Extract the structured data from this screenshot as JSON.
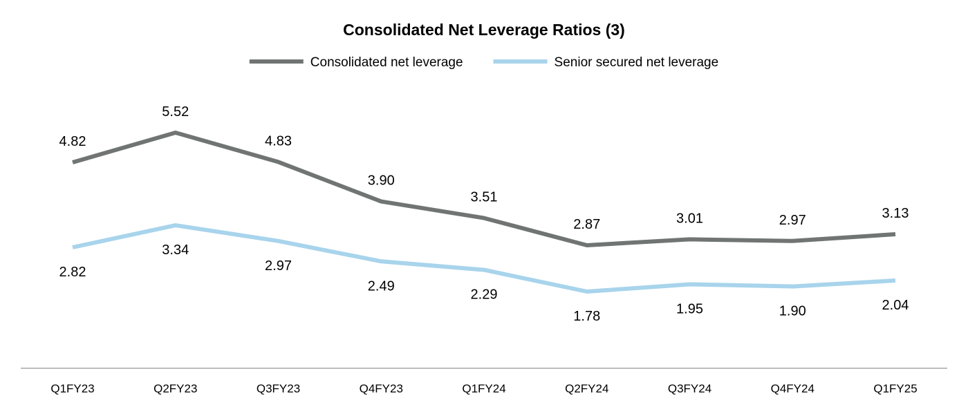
{
  "chart_data": {
    "type": "line",
    "title": "Consolidated Net Leverage Ratios (3)",
    "xlabel": "",
    "ylabel": "",
    "categories": [
      "Q1FY23",
      "Q2FY23",
      "Q3FY23",
      "Q4FY23",
      "Q1FY24",
      "Q2FY24",
      "Q3FY24",
      "Q4FY24",
      "Q1FY25"
    ],
    "series": [
      {
        "name": "Consolidated net leverage",
        "color": "#707573",
        "label_position": "above",
        "values": [
          4.82,
          5.52,
          4.83,
          3.9,
          3.51,
          2.87,
          3.01,
          2.97,
          3.13
        ],
        "labels": [
          "4.82",
          "5.52",
          "4.83",
          "3.90",
          "3.51",
          "2.87",
          "3.01",
          "2.97",
          "3.13"
        ]
      },
      {
        "name": "Senior secured net leverage",
        "color": "#a8d4ec",
        "label_position": "below",
        "values": [
          2.82,
          3.34,
          2.97,
          2.49,
          2.29,
          1.78,
          1.95,
          1.9,
          2.04
        ],
        "labels": [
          "2.82",
          "3.34",
          "2.97",
          "2.49",
          "2.29",
          "1.78",
          "1.95",
          "1.90",
          "2.04"
        ]
      }
    ],
    "ylim": [
      0,
      6.5
    ],
    "grid": false,
    "legend": "top-center",
    "axis_line_color": "#a6a6a6",
    "text_color": "#000000"
  }
}
